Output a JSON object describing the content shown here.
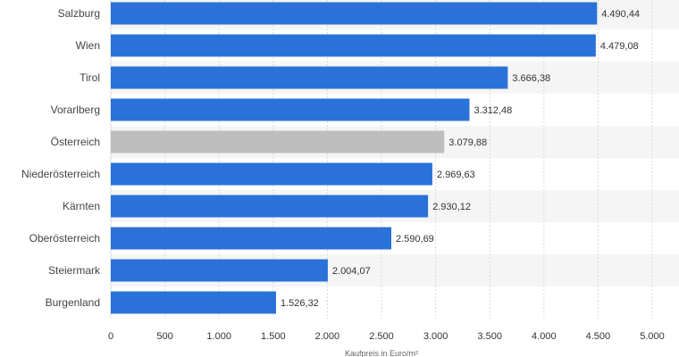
{
  "chart_data": {
    "type": "bar",
    "orientation": "horizontal",
    "categories": [
      "Salzburg",
      "Wien",
      "Tirol",
      "Vorarlberg",
      "Österreich",
      "Niederösterreich",
      "Kärnten",
      "Oberösterreich",
      "Steiermark",
      "Burgenland"
    ],
    "values": [
      4490.44,
      4479.08,
      3666.38,
      3312.48,
      3079.88,
      2969.63,
      2930.12,
      2590.69,
      2004.07,
      1526.32
    ],
    "value_labels": [
      "4.490,44",
      "4.479,08",
      "3.666,38",
      "3.312,48",
      "3.079,88",
      "2.969,63",
      "2.930,12",
      "2.590,69",
      "2.004,07",
      "1.526,32"
    ],
    "highlight_index": 4,
    "xlim": [
      0,
      5000
    ],
    "x_ticks": [
      0,
      500,
      1000,
      1500,
      2000,
      2500,
      3000,
      3500,
      4000,
      4500,
      5000
    ],
    "x_tick_labels": [
      "0",
      "500",
      "1.000",
      "1.500",
      "2.000",
      "2.500",
      "3.000",
      "3.500",
      "4.000",
      "4.500",
      "5.000"
    ],
    "xlabel": "Kaufpreis in Euro/m²",
    "ylabel": "",
    "grid": true,
    "colors": {
      "bar": "#2a72d8",
      "highlight": "#bebebe",
      "band": "#f5f5f5",
      "grid": "#d9d9d9"
    }
  }
}
